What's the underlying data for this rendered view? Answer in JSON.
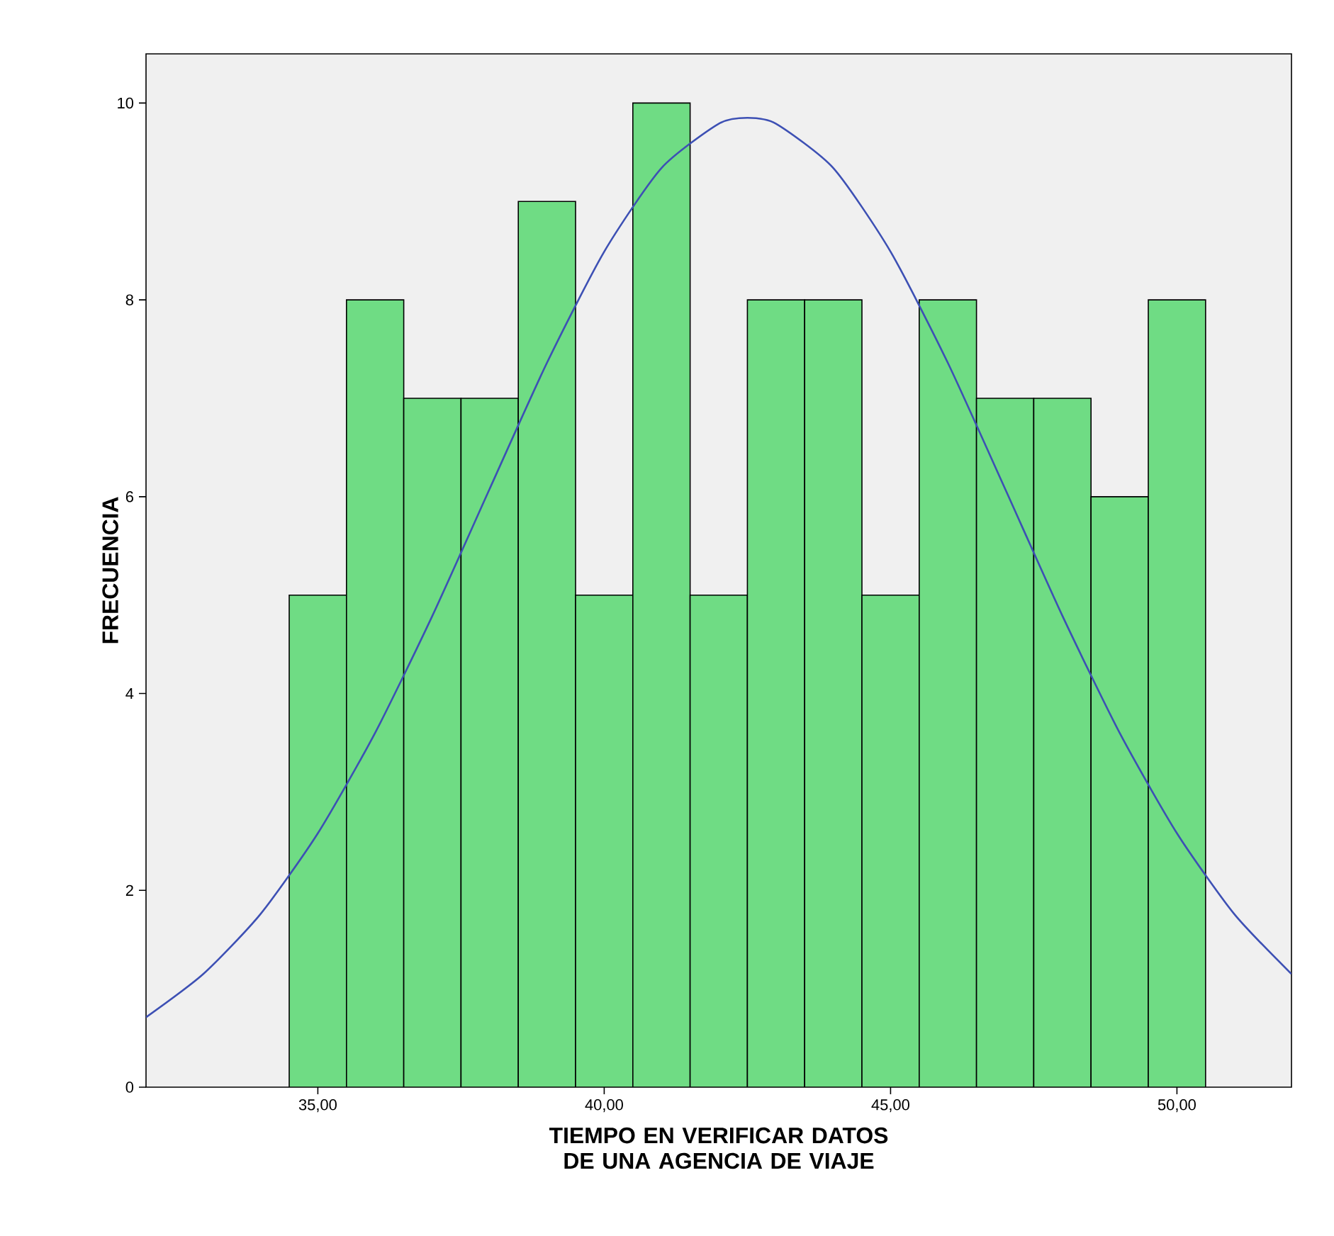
{
  "chart_data": {
    "type": "histogram",
    "xlabel": "TIEMPO EN VERIFICAR DATOS DE UNA AGENCIA DE VIAJE",
    "ylabel": "FRECUENCIA",
    "xlim": [
      32,
      52
    ],
    "ylim": [
      0,
      10.5
    ],
    "xticks": [
      {
        "value": 35,
        "label": "35,00"
      },
      {
        "value": 40,
        "label": "40,00"
      },
      {
        "value": 45,
        "label": "45,00"
      },
      {
        "value": 50,
        "label": "50,00"
      }
    ],
    "yticks": [
      0,
      2,
      4,
      6,
      8,
      10
    ],
    "grid": false,
    "series": [
      {
        "color": "#6fdc84",
        "bins": [
          34.5,
          35.5,
          36.5,
          37.5,
          38.5,
          39.5,
          40.5,
          41.5,
          42.5,
          43.5,
          44.5,
          45.5,
          46.5,
          47.5,
          48.5,
          49.5,
          50.5
        ],
        "values": [
          5,
          8,
          7,
          7,
          9,
          5,
          10,
          5,
          8,
          8,
          5,
          8,
          7,
          7,
          6,
          8
        ]
      },
      {
        "type": "line",
        "color": "#3d50b4",
        "x": [
          32,
          33,
          34,
          35,
          36,
          37,
          38,
          39,
          40,
          41,
          42,
          42.5,
          43,
          44,
          45,
          46,
          47,
          48,
          49,
          50,
          51,
          52
        ],
        "values": [
          0.71,
          1.15,
          1.76,
          2.58,
          3.6,
          4.79,
          6.08,
          7.36,
          8.49,
          9.34,
          9.79,
          9.85,
          9.79,
          9.34,
          8.49,
          7.36,
          6.08,
          4.79,
          3.6,
          2.58,
          1.76,
          1.15
        ]
      }
    ]
  }
}
